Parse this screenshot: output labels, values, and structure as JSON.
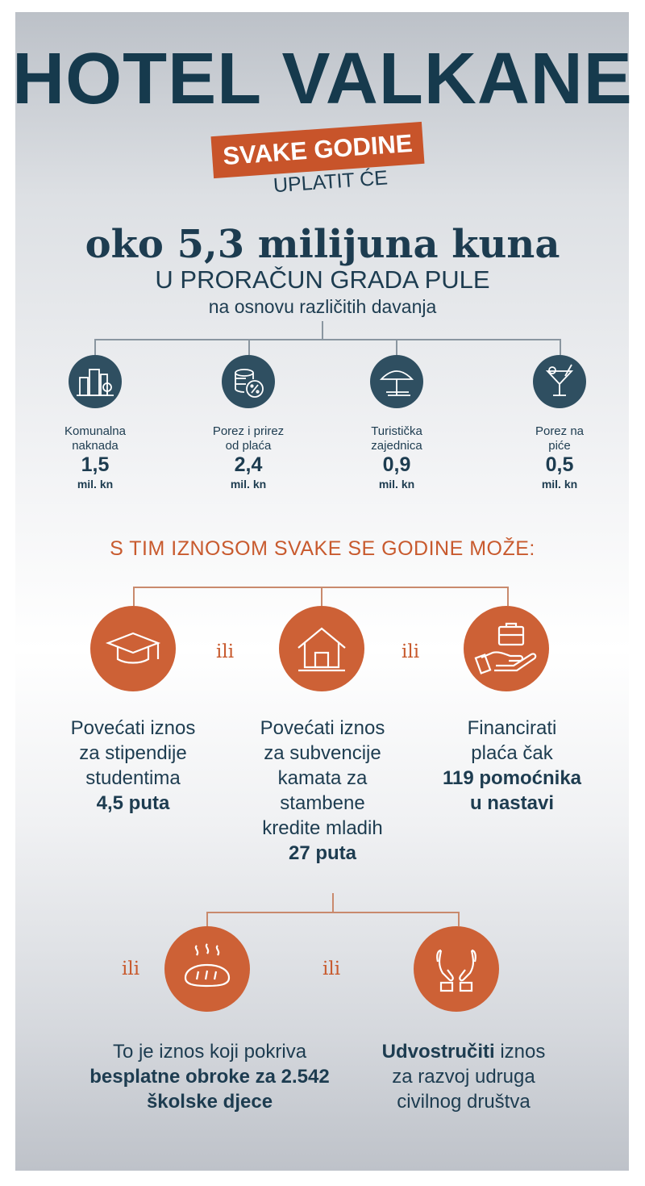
{
  "title": "HOTEL VALKANE",
  "banner": "SVAKE GODINE",
  "subbanner": "UPLATIT ĆE",
  "amount": "oko 5,3 milijuna kuna",
  "budget": "U PRORAČUN GRADA PULE",
  "basis": "na osnovu različitih davanja",
  "taxes": [
    {
      "label1": "Komunalna",
      "label2": "naknada",
      "value": "1,5",
      "unit": "mil. kn",
      "icon": "city-buildings-icon"
    },
    {
      "label1": "Porez i prirez",
      "label2": "od plaća",
      "value": "2,4",
      "unit": "mil. kn",
      "icon": "coins-percent-icon"
    },
    {
      "label1": "Turistička",
      "label2": "zajednica",
      "value": "0,9",
      "unit": "mil. kn",
      "icon": "beach-umbrella-icon"
    },
    {
      "label1": "Porez na",
      "label2": "piće",
      "value": "0,5",
      "unit": "mil. kn",
      "icon": "cocktail-glass-icon"
    }
  ],
  "can_heading": "S TIM IZNOSOM SVAKE SE GODINE MOŽE:",
  "or_word": "ili",
  "options": {
    "scholarships": {
      "line1": "Povećati iznos",
      "line2": "za stipendije",
      "line3": "studentima",
      "bold": "4,5 puta",
      "icon": "graduation-cap-icon"
    },
    "housing": {
      "line1": "Povećati iznos",
      "line2": "za subvencije",
      "line3": "kamata za",
      "line4": "stambene",
      "line5": "kredite mladih",
      "bold": "27 puta",
      "icon": "house-icon"
    },
    "assistants": {
      "line1": "Financirati",
      "line2": "plaća čak",
      "bold1": "119 pomoćnika",
      "bold2": "u nastavi",
      "icon": "hand-briefcase-icon"
    },
    "meals": {
      "line1": "To je iznos koji pokriva",
      "bold1": "besplatne obroke za 2.542",
      "bold2": "školske djece",
      "icon": "bread-icon"
    },
    "associations": {
      "bold": "Udvostručiti",
      "rest1": " iznos",
      "line2": "za razvoj udruga",
      "line3": "civilnog društva",
      "icon": "caring-hands-icon"
    }
  }
}
